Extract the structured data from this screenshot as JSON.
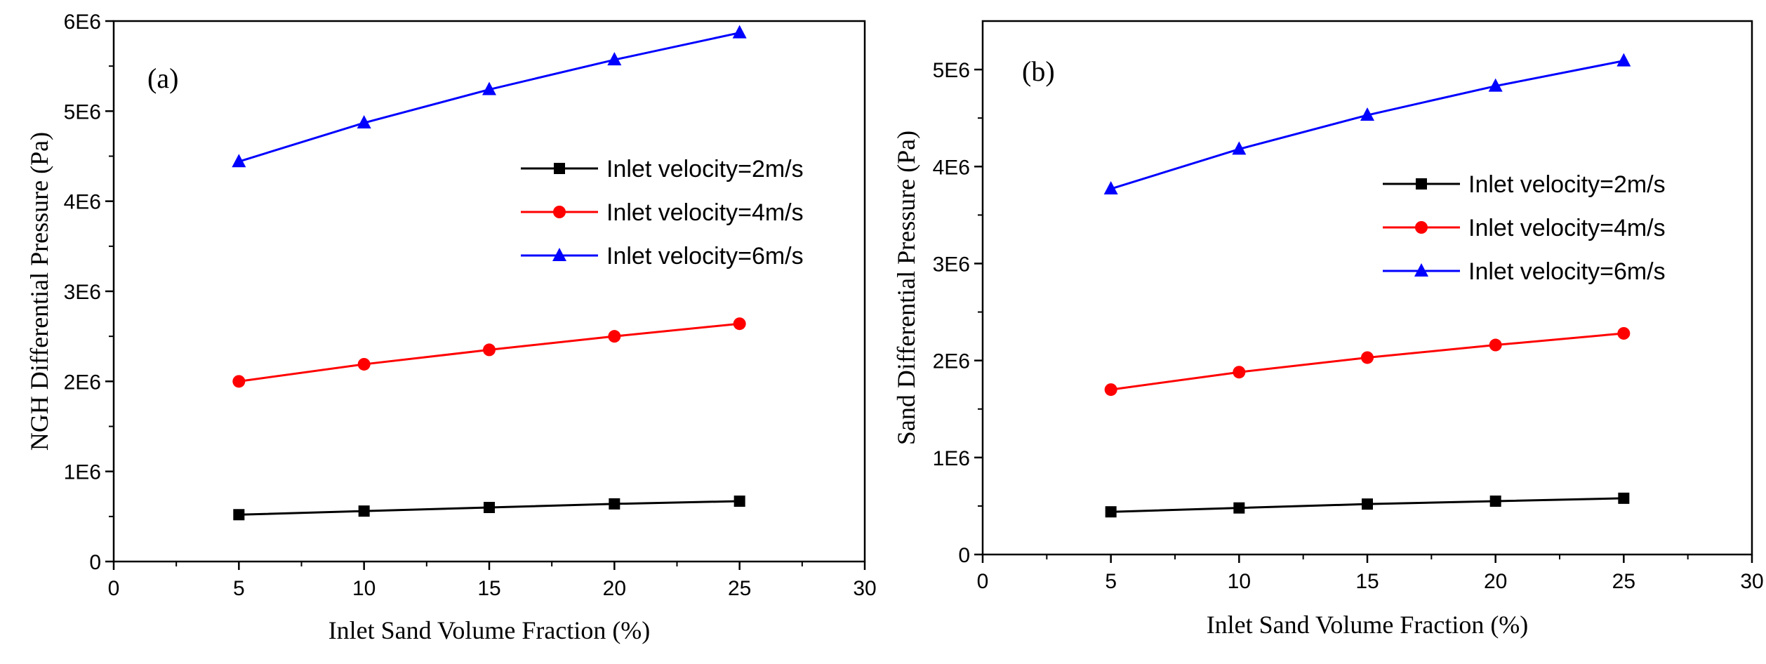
{
  "chart_data": [
    {
      "type": "line",
      "panel_label": "(a)",
      "title": "",
      "xlabel": "Inlet Sand Volume Fraction (%)",
      "ylabel": "NGH Differential Pressure (Pa)",
      "xlim": [
        0,
        30
      ],
      "ylim": [
        0,
        6000000
      ],
      "x_ticks": [
        0,
        5,
        10,
        15,
        20,
        25,
        30
      ],
      "x_tick_labels": [
        "0",
        "5",
        "10",
        "15",
        "20",
        "25",
        "30"
      ],
      "y_ticks": [
        0,
        1000000,
        2000000,
        3000000,
        4000000,
        5000000,
        6000000
      ],
      "y_tick_labels": [
        "0",
        "1E6",
        "2E6",
        "3E6",
        "4E6",
        "5E6",
        "6E6"
      ],
      "grid": false,
      "legend_position": "center-right",
      "x": [
        5,
        10,
        15,
        20,
        25
      ],
      "series": [
        {
          "name": "Inlet velocity=2m/s",
          "color": "#000000",
          "marker": "square",
          "values": [
            520000,
            560000,
            600000,
            640000,
            670000
          ]
        },
        {
          "name": "Inlet velocity=4m/s",
          "color": "#ff0000",
          "marker": "circle",
          "values": [
            2000000,
            2190000,
            2350000,
            2500000,
            2640000
          ]
        },
        {
          "name": "Inlet velocity=6m/s",
          "color": "#0000ff",
          "marker": "triangle",
          "values": [
            4440000,
            4870000,
            5240000,
            5570000,
            5870000
          ]
        }
      ]
    },
    {
      "type": "line",
      "panel_label": "(b)",
      "title": "",
      "xlabel": "Inlet Sand Volume Fraction (%)",
      "ylabel": "Sand Differential Pressure (Pa)",
      "xlim": [
        0,
        30
      ],
      "ylim": [
        0,
        5500000
      ],
      "x_ticks": [
        0,
        5,
        10,
        15,
        20,
        25,
        30
      ],
      "x_tick_labels": [
        "0",
        "5",
        "10",
        "15",
        "20",
        "25",
        "30"
      ],
      "y_ticks": [
        0,
        1000000,
        2000000,
        3000000,
        4000000,
        5000000
      ],
      "y_tick_labels": [
        "0",
        "1E6",
        "2E6",
        "3E6",
        "4E6",
        "5E6"
      ],
      "grid": false,
      "legend_position": "center-right",
      "x": [
        5,
        10,
        15,
        20,
        25
      ],
      "series": [
        {
          "name": "Inlet velocity=2m/s",
          "color": "#000000",
          "marker": "square",
          "values": [
            440000,
            480000,
            520000,
            550000,
            580000
          ]
        },
        {
          "name": "Inlet velocity=4m/s",
          "color": "#ff0000",
          "marker": "circle",
          "values": [
            1700000,
            1880000,
            2030000,
            2160000,
            2280000
          ]
        },
        {
          "name": "Inlet velocity=6m/s",
          "color": "#0000ff",
          "marker": "triangle",
          "values": [
            3770000,
            4180000,
            4530000,
            4830000,
            5090000
          ]
        }
      ]
    }
  ]
}
